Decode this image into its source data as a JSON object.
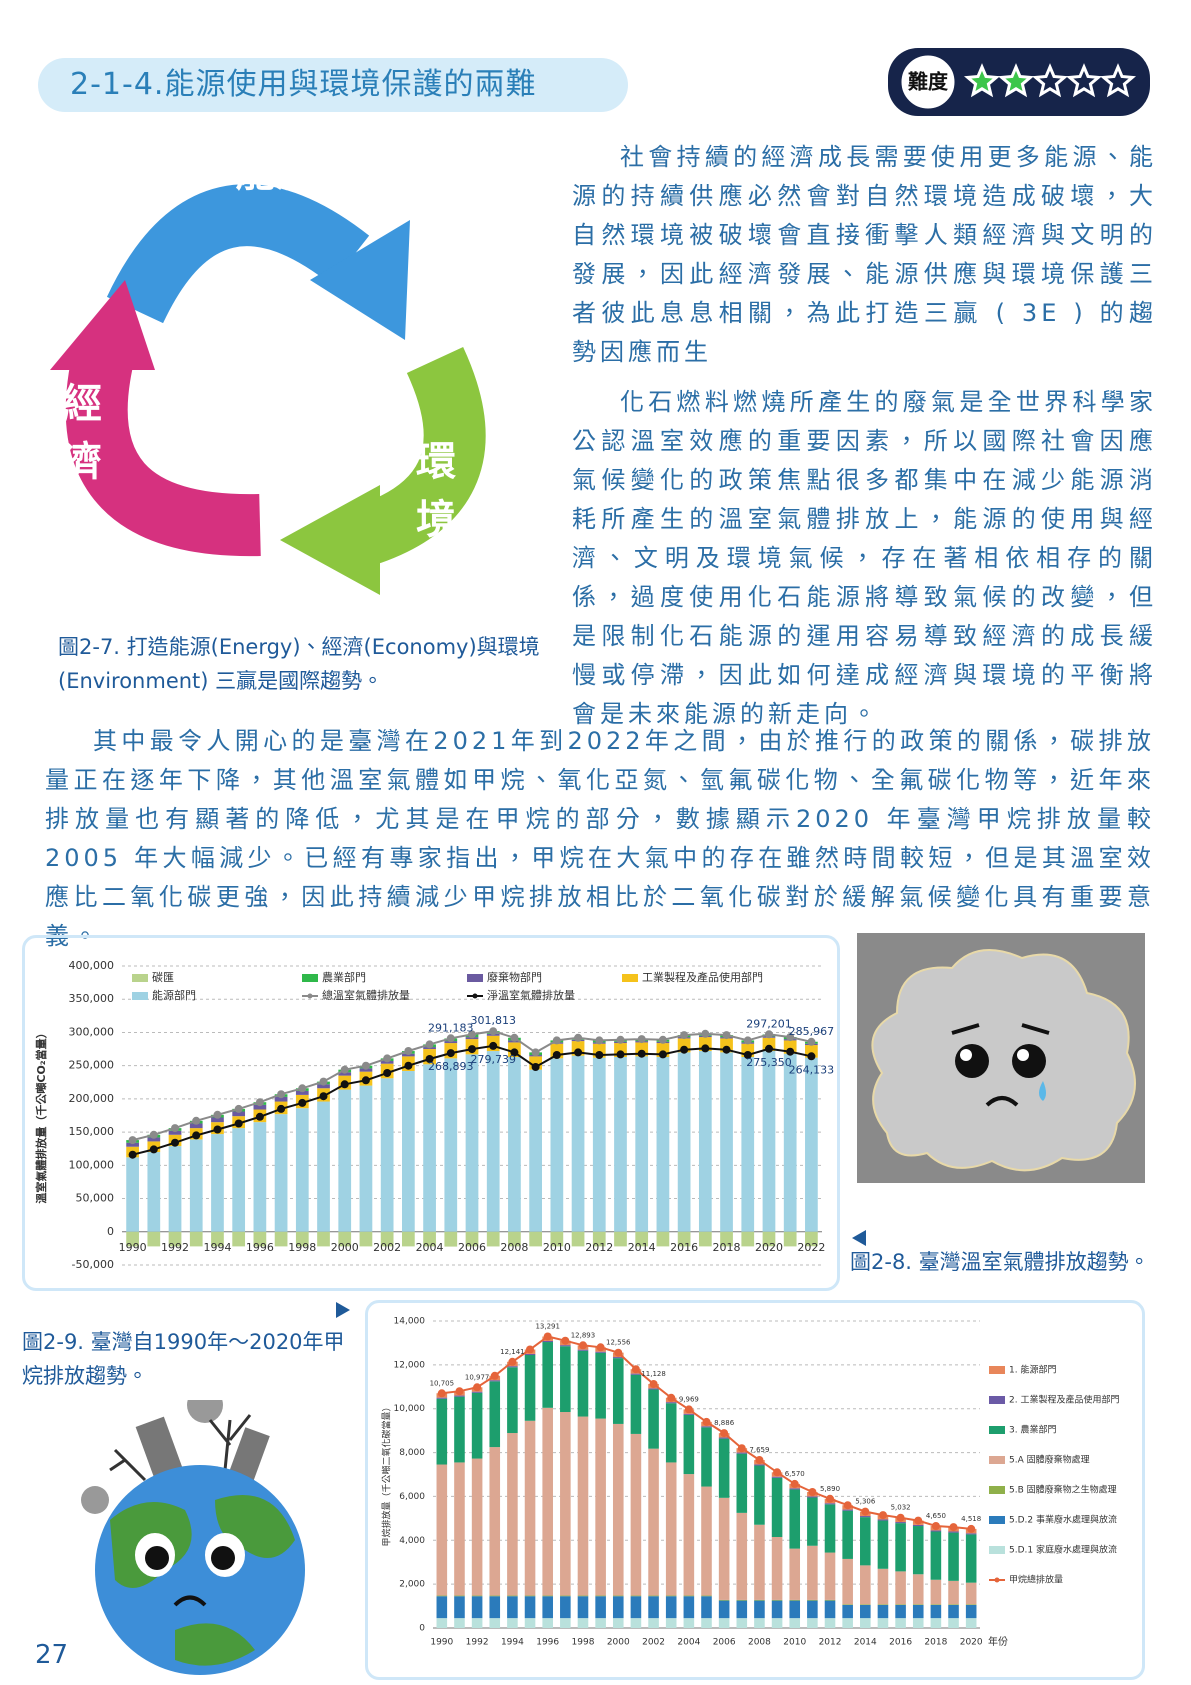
{
  "header": {
    "title": "2-1-4.能源使用與環境保護的兩難"
  },
  "difficulty": {
    "label": "難度",
    "rating": 2,
    "max": 5
  },
  "diagram": {
    "nodes": [
      {
        "label": "能源"
      },
      {
        "label": "環境"
      },
      {
        "label": "經濟"
      }
    ],
    "caption": "圖2-7. 打造能源(Energy)、經濟(Economy)與環境(Environment) 三贏是國際趨勢。"
  },
  "paragraphs": [
    "社會持續的經濟成長需要使用更多能源、能源的持續供應必然會對自然環境造成破壞，大自然環境被破壞會直接衝擊人類經濟與文明的發展，因此經濟發展、能源供應與環境保護三者彼此息息相關，為此打造三贏 ( 3E ) 的趨勢因應而生",
    "化石燃料燃燒所產生的廢氣是全世界科學家公認溫室效應的重要因素，所以國際社會因應氣候變化的政策焦點很多都集中在減少能源消耗所產生的溫室氣體排放上，能源的使用與經濟、文明及環境氣候，存在著相依相存的關係，過度使用化石能源將導致氣候的改變，但是限制化石能源的運用容易導致經濟的成長緩慢或停滯，因此如何達成經濟與環境的平衡將會是未來能源的新走向。",
    "其中最令人開心的是臺灣在2021年到2022年之間，由於推行的政策的關係，碳排放量正在逐年下降，其他溫室氣體如甲烷、氧化亞氮、氫氟碳化物、全氟碳化物等，近年來排放量也有顯著的降低，尤其是在甲烷的部分，數據顯示2020 年臺灣甲烷排放量較 2005 年大幅減少。已經有專家指出，甲烷在大氣中的存在雖然時間較短，但是其溫室效應比二氧化碳更強，因此持續減少甲烷排放相比於二氧化碳對於緩解氣候變化具有重要意義。"
  ],
  "captions": [
    "圖2-8. 臺灣溫室氣體排放趨勢。",
    "圖2-9. 臺灣自1990年～2020年甲烷排放趨勢。"
  ],
  "page_number": "27",
  "chart_data": [
    {
      "type": "bar",
      "stacked": true,
      "grid": true,
      "legend": "top",
      "y_label": "溫室氣體排放量（千公噸CO₂當量）",
      "categories": [
        "1990",
        null,
        "1992",
        null,
        "1994",
        null,
        "1996",
        null,
        "1998",
        null,
        "2000",
        null,
        "2002",
        null,
        "2004",
        null,
        "2006",
        null,
        "2008",
        null,
        "2010",
        null,
        "2012",
        null,
        "2014",
        null,
        "2016",
        null,
        "2018",
        null,
        "2020",
        null,
        "2022"
      ],
      "ylim": [
        -50000,
        400000
      ],
      "yticks": [
        {
          "value": -50000,
          "label": "-50,000"
        },
        0,
        {
          "value": 50000,
          "label": "50,000"
        },
        {
          "value": 100000,
          "label": "100,000"
        },
        {
          "value": 150000,
          "label": "150,000"
        },
        {
          "value": 200000,
          "label": "200,000"
        },
        {
          "value": 250000,
          "label": "250,000"
        },
        {
          "value": 300000,
          "label": "300,000"
        },
        {
          "value": 350000,
          "label": "350,000"
        },
        {
          "value": 400000,
          "label": "400,000"
        }
      ],
      "series": [
        {
          "name": "碳匯",
          "color": "#b9d38c",
          "values": [
            -22000,
            -22000,
            -22000,
            -22000,
            -22000,
            -22000,
            -22000,
            -22000,
            -22000,
            -22000,
            -22000,
            -22000,
            -22000,
            -22000,
            -22000,
            -22290,
            -22000,
            -22074,
            -22000,
            -22000,
            -22000,
            -22000,
            -22000,
            -22000,
            -22000,
            -22000,
            -22000,
            -22000,
            -22000,
            -22000,
            -21851,
            -22000,
            -21834
          ]
        },
        {
          "name": "農業部門",
          "color": "#2fb84a",
          "values": [
            4000,
            4000,
            4000,
            4000,
            4000,
            4000,
            4000,
            4000,
            4000,
            4000,
            4000,
            4000,
            4000,
            4000,
            4000,
            4000,
            4000,
            4000,
            4000,
            4000,
            3000,
            3000,
            3000,
            3000,
            3000,
            3000,
            3000,
            3000,
            3000,
            3000,
            3000,
            3000,
            3000
          ]
        },
        {
          "name": "廢棄物部門",
          "color": "#6a5aa0",
          "values": [
            6000,
            6000,
            6000,
            7000,
            7000,
            7000,
            7000,
            7000,
            6000,
            6000,
            5000,
            5000,
            4000,
            4000,
            3000,
            3000,
            3000,
            3000,
            3000,
            2000,
            2000,
            2000,
            2000,
            2000,
            2000,
            2000,
            2000,
            2000,
            2000,
            2000,
            2000,
            2000,
            2000
          ]
        },
        {
          "name": "工業製程及產品使用部門",
          "color": "#f5c21b",
          "values": [
            16000,
            16000,
            17000,
            17000,
            18000,
            18000,
            19000,
            19000,
            20000,
            20000,
            21000,
            21000,
            22000,
            22000,
            23000,
            23000,
            23000,
            23000,
            22000,
            20000,
            22000,
            22000,
            21000,
            21000,
            21000,
            21000,
            21000,
            21000,
            21000,
            20000,
            20000,
            20000,
            19000
          ]
        },
        {
          "name": "能源部門",
          "color": "#9fd2e3",
          "values": [
            112000,
            120000,
            129000,
            139000,
            147000,
            156000,
            165000,
            177000,
            186000,
            196000,
            214000,
            220000,
            231000,
            242000,
            252000,
            261000,
            267000,
            272000,
            263000,
            244000,
            261000,
            265000,
            262000,
            263000,
            264000,
            263000,
            270000,
            272000,
            270000,
            263000,
            272000,
            268000,
            262000
          ]
        },
        {
          "name": "總溫室氣體排放量",
          "type": "line",
          "color": "#8a8a8a",
          "values": [
            138000,
            146000,
            156000,
            167000,
            176000,
            185000,
            195000,
            207000,
            216000,
            226000,
            244000,
            250000,
            261000,
            272000,
            282000,
            291183,
            297000,
            301813,
            292000,
            270000,
            288000,
            292000,
            288000,
            289000,
            290000,
            289000,
            296000,
            298000,
            296000,
            288000,
            297201,
            293000,
            285967
          ],
          "value_labels": [
            null,
            null,
            null,
            null,
            null,
            null,
            null,
            null,
            null,
            null,
            null,
            null,
            null,
            null,
            null,
            "291,183",
            null,
            "301,813",
            null,
            null,
            null,
            null,
            null,
            null,
            null,
            null,
            null,
            null,
            null,
            null,
            "297,201",
            null,
            "285,967"
          ]
        },
        {
          "name": "淨溫室氣體排放量",
          "type": "line",
          "color": "#111111",
          "values": [
            116000,
            124000,
            134000,
            145000,
            154000,
            163000,
            173000,
            185000,
            194000,
            204000,
            222000,
            228000,
            239000,
            250000,
            260000,
            268893,
            275000,
            279739,
            270000,
            248000,
            266000,
            270000,
            266000,
            267000,
            268000,
            267000,
            274000,
            276000,
            274000,
            266000,
            275350,
            271000,
            264133
          ],
          "value_labels": [
            null,
            null,
            null,
            null,
            null,
            null,
            null,
            null,
            null,
            null,
            null,
            null,
            null,
            null,
            null,
            "268,893",
            null,
            "279,739",
            null,
            null,
            null,
            null,
            null,
            null,
            null,
            null,
            null,
            null,
            null,
            null,
            "275,350",
            null,
            "264,133"
          ]
        }
      ]
    },
    {
      "type": "bar",
      "stacked": true,
      "grid": true,
      "legend": "right",
      "y_label": "甲烷排放量（千公噸二氧化碳當量）",
      "x_label": "年份",
      "categories": [
        "1990",
        null,
        "1992",
        null,
        "1994",
        null,
        "1996",
        null,
        "1998",
        null,
        "2000",
        null,
        "2002",
        null,
        "2004",
        null,
        "2006",
        null,
        "2008",
        null,
        "2010",
        null,
        "2012",
        null,
        "2014",
        null,
        "2016",
        null,
        "2018",
        null,
        "2020"
      ],
      "ylim": [
        0,
        14000
      ],
      "yticks": [
        0,
        {
          "value": 2000,
          "label": "2,000"
        },
        {
          "value": 4000,
          "label": "4,000"
        },
        {
          "value": 6000,
          "label": "6,000"
        },
        {
          "value": 8000,
          "label": "8,000"
        },
        {
          "value": 10000,
          "label": "10,000"
        },
        {
          "value": 12000,
          "label": "12,000"
        },
        {
          "value": 14000,
          "label": "14,000"
        }
      ],
      "series": [
        {
          "name": "1. 能源部門",
          "color": "#e8865a",
          "values": [
            200,
            200,
            200,
            200,
            200,
            200,
            200,
            200,
            200,
            200,
            200,
            200,
            200,
            200,
            200,
            200,
            200,
            200,
            200,
            200,
            200,
            200,
            200,
            200,
            200,
            200,
            200,
            200,
            200,
            200,
            200
          ]
        },
        {
          "name": "2. 工業製程及產品使用部門",
          "color": "#6b5aa6",
          "values": [
            50,
            50,
            50,
            50,
            50,
            50,
            50,
            50,
            50,
            50,
            50,
            50,
            50,
            50,
            50,
            50,
            50,
            50,
            50,
            50,
            50,
            50,
            50,
            50,
            50,
            50,
            50,
            50,
            50,
            50,
            50
          ]
        },
        {
          "name": "3. 農業部門",
          "color": "#1d9e6d",
          "values": [
            3000,
            3000,
            3000,
            3000,
            3000,
            3000,
            3000,
            3000,
            3000,
            3000,
            3000,
            2700,
            2700,
            2700,
            2700,
            2700,
            2700,
            2700,
            2700,
            2700,
            2700,
            2200,
            2200,
            2200,
            2200,
            2200,
            2200,
            2200,
            2200,
            2200,
            2200
          ]
        },
        {
          "name": "5.A 固體廢棄物處理",
          "color": "#dca792",
          "values": [
            5975,
            6070,
            6247,
            6770,
            7411,
            7970,
            8561,
            8370,
            8163,
            8070,
            7826,
            7370,
            6698,
            6070,
            5539,
            4970,
            4656,
            3970,
            3429,
            2870,
            2340,
            2470,
            2160,
            2070,
            1776,
            1620,
            1502,
            1370,
            1120,
            1070,
            988
          ]
        },
        {
          "name": "5.B 固體廢棄物之生物處理",
          "color": "#8fb04a",
          "values": [
            30,
            30,
            30,
            30,
            30,
            30,
            30,
            30,
            30,
            30,
            30,
            30,
            30,
            30,
            30,
            30,
            30,
            30,
            30,
            30,
            30,
            30,
            30,
            30,
            30,
            30,
            30,
            30,
            30,
            30,
            30
          ]
        },
        {
          "name": "5.D.2 事業廢水處理與放流",
          "color": "#2b7bbb",
          "values": [
            1000,
            1000,
            1000,
            1000,
            1000,
            1000,
            1000,
            1000,
            1000,
            1000,
            1000,
            1000,
            1000,
            1000,
            1000,
            1000,
            800,
            800,
            800,
            800,
            800,
            800,
            800,
            600,
            600,
            600,
            600,
            600,
            600,
            600,
            600
          ]
        },
        {
          "name": "5.D.1 家庭廢水處理與放流",
          "color": "#b9e1dc",
          "values": [
            450,
            450,
            450,
            450,
            450,
            450,
            450,
            450,
            450,
            450,
            450,
            450,
            450,
            450,
            450,
            450,
            450,
            450,
            450,
            450,
            450,
            450,
            450,
            450,
            450,
            450,
            450,
            450,
            450,
            450,
            450
          ]
        },
        {
          "name": "甲烷總排放量",
          "type": "line",
          "color": "#e5643a",
          "values": [
            10705,
            10800,
            10977,
            11500,
            12141,
            12700,
            13291,
            13100,
            12893,
            12800,
            12556,
            11800,
            11128,
            10500,
            9969,
            9400,
            8886,
            8200,
            7659,
            7100,
            6570,
            6200,
            5890,
            5600,
            5306,
            5150,
            5032,
            4900,
            4650,
            4600,
            4518
          ],
          "value_labels": [
            "10,705",
            null,
            "10,977",
            null,
            "12,141",
            null,
            "13,291",
            null,
            "12,893",
            null,
            "12,556",
            null,
            "11,128",
            null,
            "9,969",
            null,
            "8,886",
            null,
            "7,659",
            null,
            "6,570",
            null,
            "5,890",
            null,
            "5,306",
            null,
            "5,032",
            null,
            "4,650",
            null,
            "4,518"
          ]
        }
      ]
    }
  ]
}
